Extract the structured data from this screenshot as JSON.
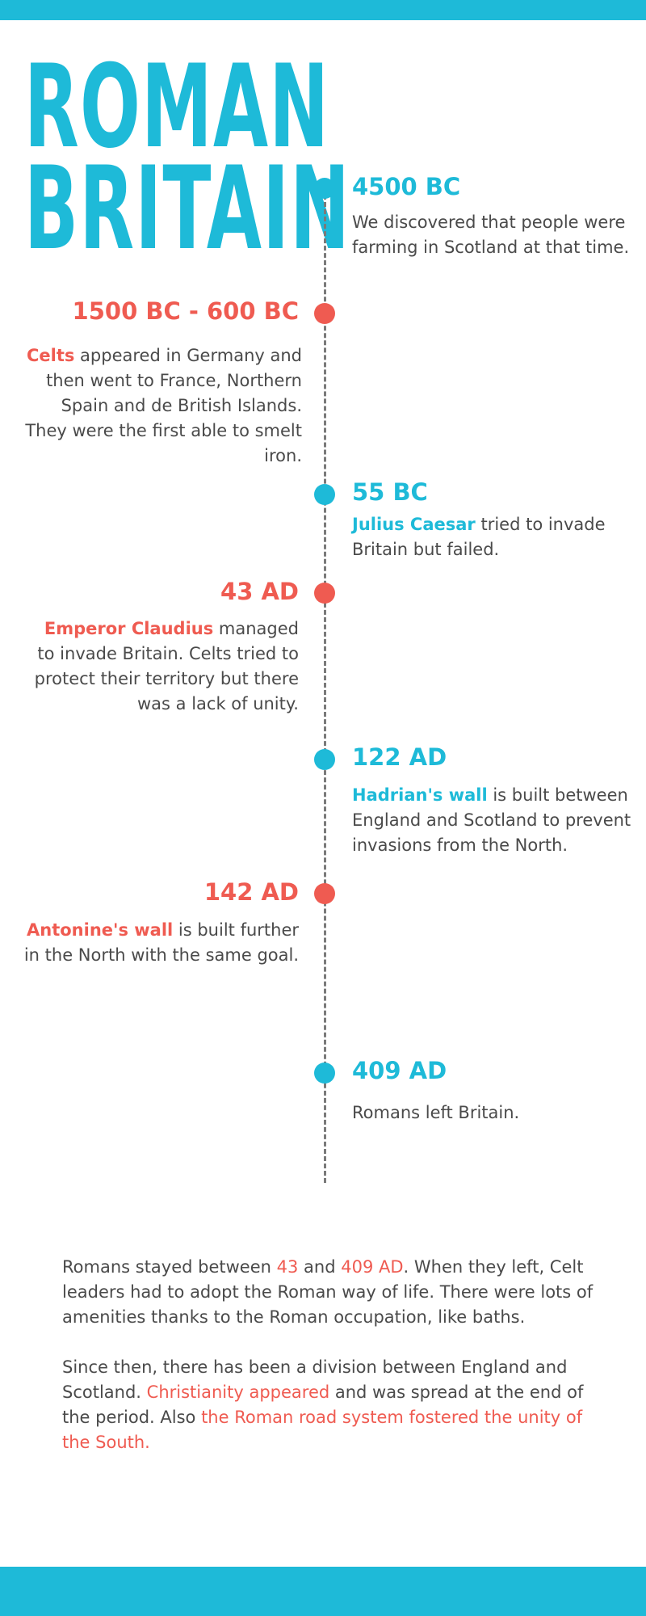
{
  "title": {
    "line1": "ROMAN",
    "line2": "BRITAIN"
  },
  "colors": {
    "accent_blue": "#1ebad8",
    "accent_red": "#ef5b51",
    "text": "#4a4a4a",
    "timeline": "#7a7a7a"
  },
  "timeline": [
    {
      "date": "4500 BC",
      "text": "We discovered that people were farming in Scotland at that time."
    },
    {
      "date": "1500 BC - 600 BC",
      "highlight": "Celts",
      "text": " appeared in Germany and then went to France, Northern Spain and de British Islands. They were the first able to smelt iron."
    },
    {
      "date": "55 BC",
      "highlight": "Julius Caesar",
      "text": " tried to invade Britain but failed."
    },
    {
      "date": "43 AD",
      "highlight": "Emperor Claudius",
      "text": " managed to invade Britain. Celts tried to protect their territory but there was a lack of unity."
    },
    {
      "date": "122 AD",
      "highlight": "Hadrian's wall",
      "text": " is built between England and Scotland to prevent invasions from the North."
    },
    {
      "date": "142 AD",
      "highlight": "Antonine's wall",
      "text": " is built further in the North with the same goal."
    },
    {
      "date": "409 AD",
      "text": "Romans left Britain."
    }
  ],
  "summary": {
    "p1": {
      "t1": "Romans stayed between ",
      "a1": "43",
      "t2": " and ",
      "a2": "409 AD",
      "t3": ". When they left, Celt leaders had to adopt the Roman way of life. There were lots of amenities thanks to the Roman occupation, like baths."
    },
    "p2": {
      "t1": "Since then, there has been a division between England and Scotland. ",
      "a1": "Christianity appeared",
      "t2": " and was spread at the end of the period. Also ",
      "a2": "the Roman road system fostered the unity of the South."
    }
  }
}
